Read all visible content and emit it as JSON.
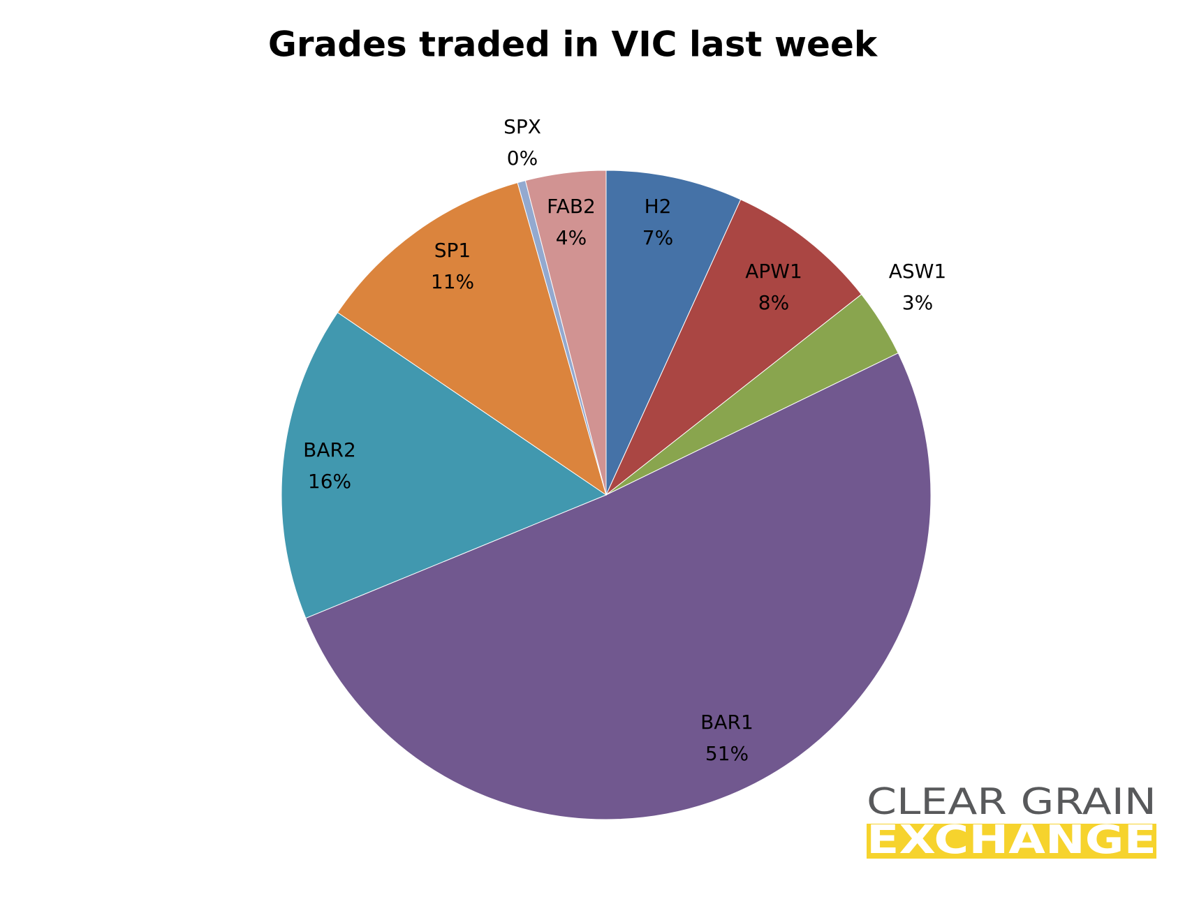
{
  "chart_data": {
    "type": "pie",
    "title": "Grades traded in VIC last week",
    "categories": [
      "H2",
      "APW1",
      "ASW1",
      "BAR1",
      "BAR2",
      "SP1",
      "SPX",
      "FAB2"
    ],
    "values": [
      6.8,
      7.6,
      3.4,
      51.0,
      15.7,
      11.1,
      0.4,
      4.0
    ],
    "value_labels": [
      "7%",
      "8%",
      "3%",
      "51%",
      "16%",
      "11%",
      "0%",
      "4%"
    ],
    "colors": [
      "#4572a7",
      "#aa4643",
      "#89a54e",
      "#71588f",
      "#4198af",
      "#db843d",
      "#93a9cf",
      "#d19392"
    ]
  },
  "logo": {
    "line1": "CLEAR GRAIN",
    "line2": "EXCHANGE"
  }
}
